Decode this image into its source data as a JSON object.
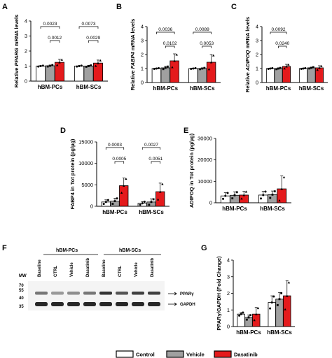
{
  "panels": {
    "A": {
      "letter": "A"
    },
    "B": {
      "letter": "B"
    },
    "C": {
      "letter": "C"
    },
    "D": {
      "letter": "D"
    },
    "E": {
      "letter": "E"
    },
    "F": {
      "letter": "F"
    },
    "G": {
      "letter": "G"
    }
  },
  "legend": {
    "control": {
      "label": "Control",
      "color": "#ffffff"
    },
    "vehicle": {
      "label": "Vehicle",
      "color": "#a0a0a0"
    },
    "dasatinib": {
      "label": "Dasatinib",
      "color": "#e41a1c"
    }
  },
  "blot": {
    "mw_label": "MW",
    "groups": [
      "hBM-PCs",
      "hBM-SCs"
    ],
    "lanes": [
      "Baseline",
      "CTRL",
      "Vehicle",
      "Dasatinib",
      "Baseline",
      "CTRL",
      "Vehicle",
      "Dasatinib"
    ],
    "markers": [
      "70",
      "55",
      "40",
      "35"
    ],
    "bands": [
      "PPARγ",
      "GAPDH"
    ]
  },
  "chart_data": [
    {
      "panel": "A",
      "type": "bar",
      "ylabel_prefix": "Relative ",
      "ylabel_gene": "PPARG",
      "ylabel_suffix": " mRNA levels",
      "ylim": [
        0,
        4
      ],
      "yticks": [
        "0",
        "1",
        "2",
        "3",
        "4"
      ],
      "categories": [
        "hBM-PCs",
        "hBM-SCs"
      ],
      "series": [
        {
          "name": "Control",
          "values": [
            1.0,
            1.0
          ],
          "err": [
            0.03,
            0.03
          ]
        },
        {
          "name": "Vehicle",
          "values": [
            1.02,
            1.0
          ],
          "err": [
            0.05,
            0.05
          ]
        },
        {
          "name": "Dasatinib",
          "values": [
            1.25,
            1.2
          ],
          "err": [
            0.2,
            0.2
          ]
        }
      ],
      "comparisons": [
        {
          "group": 0,
          "from": 0,
          "to": 2,
          "label": "0.0023",
          "level": 2
        },
        {
          "group": 0,
          "from": 1,
          "to": 2,
          "label": "0.0012",
          "level": 1
        },
        {
          "group": 1,
          "from": 0,
          "to": 2,
          "label": "0.0073",
          "level": 2
        },
        {
          "group": 1,
          "from": 1,
          "to": 2,
          "label": "0.0029",
          "level": 1
        }
      ]
    },
    {
      "panel": "B",
      "type": "bar",
      "ylabel_prefix": "Relative ",
      "ylabel_gene": "FABP4",
      "ylabel_suffix": " mRNA levels",
      "ylim": [
        0,
        4
      ],
      "yticks": [
        "0",
        "1",
        "2",
        "3",
        "4"
      ],
      "categories": [
        "hBM-PCs",
        "hBM-SCs"
      ],
      "series": [
        {
          "name": "Control",
          "values": [
            1.0,
            1.0
          ],
          "err": [
            0.03,
            0.03
          ]
        },
        {
          "name": "Vehicle",
          "values": [
            1.05,
            1.0
          ],
          "err": [
            0.1,
            0.05
          ]
        },
        {
          "name": "Dasatinib",
          "values": [
            1.55,
            1.45
          ],
          "err": [
            0.5,
            0.55
          ]
        }
      ],
      "comparisons": [
        {
          "group": 0,
          "from": 0,
          "to": 2,
          "label": "0.0036",
          "level": 2
        },
        {
          "group": 0,
          "from": 1,
          "to": 2,
          "label": "0.0102",
          "level": 1
        },
        {
          "group": 1,
          "from": 0,
          "to": 2,
          "label": "0.0089",
          "level": 2
        },
        {
          "group": 1,
          "from": 1,
          "to": 2,
          "label": "0.0053",
          "level": 1
        }
      ]
    },
    {
      "panel": "C",
      "type": "bar",
      "ylabel_prefix": "Relative ",
      "ylabel_gene": "ADIPOQ",
      "ylabel_suffix": " mRNA levels",
      "ylim": [
        0,
        4
      ],
      "yticks": [
        "0",
        "1",
        "2",
        "3",
        "4"
      ],
      "categories": [
        "hBM-PCs",
        "hBM-SCs"
      ],
      "series": [
        {
          "name": "Control",
          "values": [
            1.0,
            1.0
          ],
          "err": [
            0.03,
            0.03
          ]
        },
        {
          "name": "Vehicle",
          "values": [
            1.0,
            1.05
          ],
          "err": [
            0.05,
            0.05
          ]
        },
        {
          "name": "Dasatinib",
          "values": [
            1.15,
            1.05
          ],
          "err": [
            0.15,
            0.15
          ]
        }
      ],
      "comparisons": [
        {
          "group": 0,
          "from": 0,
          "to": 2,
          "label": "0.0092",
          "level": 2
        },
        {
          "group": 0,
          "from": 1,
          "to": 2,
          "label": "0.0240",
          "level": 1
        }
      ]
    },
    {
      "panel": "D",
      "type": "bar",
      "ylabel": "FABP4 in Tot protein (pg/µg)",
      "ylim": [
        0,
        15000
      ],
      "yticks": [
        "0",
        "5000",
        "10000",
        "15000"
      ],
      "categories": [
        "hBM-PCs",
        "hBM-SCs"
      ],
      "series": [
        {
          "name": "Control",
          "values": [
            1000,
            700
          ],
          "err": [
            500,
            400
          ]
        },
        {
          "name": "Vehicle",
          "values": [
            1200,
            1000
          ],
          "err": [
            700,
            700
          ]
        },
        {
          "name": "Dasatinib",
          "values": [
            4800,
            3400
          ],
          "err": [
            1800,
            2000
          ]
        }
      ],
      "comparisons": [
        {
          "group": 0,
          "from": 0,
          "to": 2,
          "label": "0.0003",
          "level": 2
        },
        {
          "group": 0,
          "from": 1,
          "to": 2,
          "label": "0.0005",
          "level": 1
        },
        {
          "group": 1,
          "from": 0,
          "to": 2,
          "label": "0.0027",
          "level": 2
        },
        {
          "group": 1,
          "from": 1,
          "to": 2,
          "label": "0.0051",
          "level": 1
        }
      ]
    },
    {
      "panel": "E",
      "type": "bar",
      "ylabel": "ADIPOQ in Tot protein (pg/µg)",
      "ylim": [
        0,
        30000
      ],
      "yticks": [
        "0",
        "10000",
        "20000",
        "30000"
      ],
      "categories": [
        "hBM-PCs",
        "hBM-SCs"
      ],
      "series": [
        {
          "name": "Control",
          "values": [
            3200,
            3600
          ],
          "err": [
            1500,
            1800
          ]
        },
        {
          "name": "Vehicle",
          "values": [
            3500,
            3800
          ],
          "err": [
            1600,
            1700
          ]
        },
        {
          "name": "Dasatinib",
          "values": [
            3600,
            6500
          ],
          "err": [
            1800,
            6000
          ]
        }
      ],
      "comparisons": []
    },
    {
      "panel": "G",
      "type": "bar",
      "ylabel": "PPARγ/GAPDH (Fold Change)",
      "ylim": [
        0,
        4
      ],
      "yticks": [
        "0",
        "1",
        "2",
        "3",
        "4"
      ],
      "categories": [
        "hBM-PCs",
        "hBM-SCs"
      ],
      "series": [
        {
          "name": "Control",
          "values": [
            0.75,
            1.45
          ],
          "err": [
            0.1,
            0.4
          ]
        },
        {
          "name": "Vehicle",
          "values": [
            0.55,
            1.65
          ],
          "err": [
            0.15,
            0.4
          ]
        },
        {
          "name": "Dasatinib",
          "values": [
            0.75,
            1.85
          ],
          "err": [
            0.4,
            0.9
          ]
        }
      ],
      "comparisons": []
    }
  ]
}
